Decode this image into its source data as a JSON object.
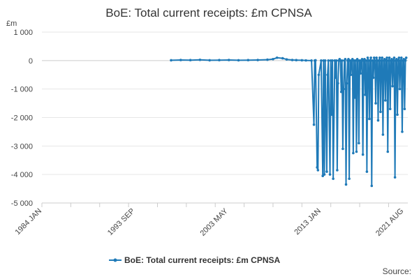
{
  "chart_data": {
    "type": "line",
    "title": "BoE: Total current receipts: £m CPNSA",
    "ylabel": "£m",
    "xlabel": "",
    "ylim": [
      -5000,
      1000
    ],
    "xlim": [
      "1984-01",
      "2022-01"
    ],
    "yticks": [
      1000,
      0,
      -1000,
      -2000,
      -3000,
      -4000,
      -5000
    ],
    "ytick_labels": [
      "1 000",
      "0",
      "-1 000",
      "-2 000",
      "-3 000",
      "-4 000",
      "-5 000"
    ],
    "xticks": [
      "1984-01",
      "1993-09",
      "2003-05",
      "2013-01",
      "2021-08"
    ],
    "xtick_labels": [
      "1984 JAN",
      "1993 SEP",
      "2003 MAY",
      "2013 JAN",
      "2021 AUG"
    ],
    "grid": "horizontal",
    "legend_position": "bottom",
    "color": "#1f7ab8",
    "series": [
      {
        "name": "BoE: Total current receipts: £m CPNSA",
        "x": [
          "1997-06",
          "1998-06",
          "1999-06",
          "2000-06",
          "2001-06",
          "2002-06",
          "2003-06",
          "2004-06",
          "2005-06",
          "2006-06",
          "2007-06",
          "2008-01",
          "2008-06",
          "2009-01",
          "2009-06",
          "2010-01",
          "2010-06",
          "2011-01",
          "2011-06",
          "2012-01",
          "2012-04",
          "2012-05",
          "2012-06",
          "2012-08",
          "2012-09",
          "2012-10",
          "2013-01",
          "2013-03",
          "2013-04",
          "2013-05",
          "2013-06",
          "2013-08",
          "2013-09",
          "2013-10",
          "2013-12",
          "2014-01",
          "2014-02",
          "2014-03",
          "2014-04",
          "2014-06",
          "2014-07",
          "2014-08",
          "2014-09",
          "2014-10",
          "2014-11",
          "2014-12",
          "2015-01",
          "2015-02",
          "2015-03",
          "2015-04",
          "2015-05",
          "2015-06",
          "2015-07",
          "2015-08",
          "2015-09",
          "2015-10",
          "2015-11",
          "2015-12",
          "2016-01",
          "2016-02",
          "2016-03",
          "2016-04",
          "2016-05",
          "2016-06",
          "2016-07",
          "2016-08",
          "2016-09",
          "2016-10",
          "2016-11",
          "2016-12",
          "2017-01",
          "2017-02",
          "2017-03",
          "2017-04",
          "2017-05",
          "2017-06",
          "2017-07",
          "2017-08",
          "2017-09",
          "2017-10",
          "2017-11",
          "2017-12",
          "2018-01",
          "2018-02",
          "2018-03",
          "2018-04",
          "2018-05",
          "2018-06",
          "2018-07",
          "2018-08",
          "2018-09",
          "2018-10",
          "2018-11",
          "2018-12",
          "2019-01",
          "2019-02",
          "2019-03",
          "2019-04",
          "2019-05",
          "2019-06",
          "2019-07",
          "2019-08",
          "2019-09",
          "2019-10",
          "2019-11",
          "2019-12",
          "2020-01",
          "2020-02",
          "2020-03",
          "2020-04",
          "2020-05",
          "2020-06",
          "2020-07",
          "2020-08",
          "2020-09",
          "2020-10",
          "2020-11",
          "2020-12",
          "2021-01",
          "2021-02",
          "2021-03",
          "2021-04",
          "2021-05",
          "2021-06",
          "2021-07",
          "2021-08",
          "2021-09",
          "2021-10",
          "2021-11"
        ],
        "values": [
          10,
          20,
          15,
          25,
          10,
          15,
          20,
          10,
          15,
          20,
          30,
          50,
          100,
          80,
          40,
          20,
          15,
          10,
          5,
          0,
          -2250,
          0,
          10,
          -3750,
          -3850,
          -500,
          0,
          -4050,
          0,
          -4000,
          0,
          -3900,
          -500,
          0,
          -4000,
          0,
          -1900,
          0,
          -4150,
          0,
          -600,
          0,
          -3850,
          -800,
          0,
          50,
          0,
          -1100,
          0,
          -3100,
          -1000,
          0,
          50,
          -4350,
          -800,
          0,
          50,
          -4150,
          0,
          -500,
          0,
          50,
          -3250,
          0,
          -1300,
          0,
          -3200,
          50,
          0,
          -2900,
          0,
          -450,
          0,
          50,
          -3300,
          0,
          50,
          -1200,
          0,
          -3900,
          100,
          0,
          -2050,
          0,
          100,
          -4400,
          0,
          -600,
          100,
          0,
          -1500,
          100,
          0,
          -2100,
          0,
          100,
          -1800,
          0,
          100,
          -2600,
          0,
          50,
          -1400,
          0,
          100,
          -3200,
          0,
          100,
          -1700,
          0,
          50,
          -900,
          0,
          100,
          -4100,
          0,
          50,
          -1900,
          0,
          100,
          -1000,
          0,
          100,
          -2500,
          0,
          50,
          -1700,
          0,
          100
        ]
      }
    ]
  },
  "source_label": "Source:"
}
